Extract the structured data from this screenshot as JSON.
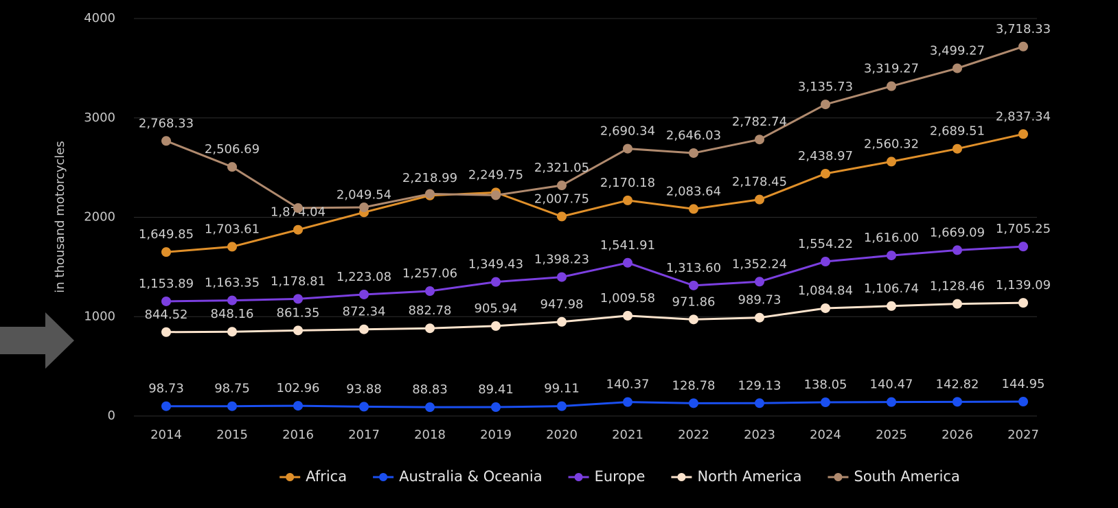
{
  "chart_data": {
    "type": "line",
    "y_label": "in thousand motorcycles",
    "categories": [
      "2014",
      "2015",
      "2016",
      "2017",
      "2018",
      "2019",
      "2020",
      "2021",
      "2022",
      "2023",
      "2024",
      "2025",
      "2026",
      "2027"
    ],
    "ylim": [
      0,
      4000
    ],
    "yticks": [
      0,
      1000,
      2000,
      3000,
      4000
    ],
    "grid": true,
    "series": [
      {
        "name": "Africa",
        "color": "#e0902a",
        "values": [
          1649.85,
          1703.61,
          1874.04,
          2049.54,
          2218.99,
          2249.75,
          2007.75,
          2170.18,
          2083.64,
          2178.45,
          2438.97,
          2560.32,
          2689.51,
          2837.34
        ],
        "value_labels": [
          "1,649.85",
          "1,703.61",
          "1,874.04",
          "2,049.54",
          "2,218.99",
          "2,249.75",
          "2,007.75",
          "2,170.18",
          "2,083.64",
          "2,178.45",
          "2,438.97",
          "2,560.32",
          "2,689.51",
          "2,837.34"
        ]
      },
      {
        "name": "Australia & Oceania",
        "color": "#1a4ff0",
        "values": [
          98.73,
          98.75,
          102.96,
          93.88,
          88.83,
          89.41,
          99.11,
          140.37,
          128.78,
          129.13,
          138.05,
          140.47,
          142.82,
          144.95
        ],
        "value_labels": [
          "98.73",
          "98.75",
          "102.96",
          "93.88",
          "88.83",
          "89.41",
          "99.11",
          "140.37",
          "128.78",
          "129.13",
          "138.05",
          "140.47",
          "142.82",
          "144.95"
        ]
      },
      {
        "name": "Europe",
        "color": "#7b3fe0",
        "values": [
          1153.89,
          1163.35,
          1178.81,
          1223.08,
          1257.06,
          1349.43,
          1398.23,
          1541.91,
          1313.6,
          1352.24,
          1554.22,
          1616,
          1669.09,
          1705.25
        ],
        "value_labels": [
          "1,153.89",
          "1,163.35",
          "1,178.81",
          "1,223.08",
          "1,257.06",
          "1,349.43",
          "1,398.23",
          "1,541.91",
          "1,313.60",
          "1,352.24",
          "1,554.22",
          "1,616.00",
          "1,669.09",
          "1,705.25"
        ]
      },
      {
        "name": "North America",
        "color": "#fbe3cc",
        "values": [
          844.52,
          848.16,
          861.35,
          872.34,
          882.78,
          905.94,
          947.98,
          1009.58,
          971.86,
          989.73,
          1084.84,
          1106.74,
          1128.46,
          1139.09
        ],
        "value_labels": [
          "844.52",
          "848.16",
          "861.35",
          "872.34",
          "882.78",
          "905.94",
          "947.98",
          "1,009.58",
          "971.86",
          "989.73",
          "1,084.84",
          "1,106.74",
          "1,128.46",
          "1,139.09"
        ]
      },
      {
        "name": "South America",
        "color": "#b08a6e",
        "values": [
          2768.33,
          2506.69,
          2093,
          2100,
          2235,
          2222,
          2321.05,
          2690.34,
          2646.03,
          2782.74,
          3135.73,
          3319.27,
          3499.27,
          3718.33
        ],
        "value_labels": [
          "2,768.33",
          "2,506.69",
          null,
          null,
          null,
          null,
          "2,321.05",
          "2,690.34",
          "2,646.03",
          "2,782.74",
          "3,135.73",
          "3,319.27",
          "3,499.27",
          "3,718.33"
        ]
      }
    ]
  }
}
